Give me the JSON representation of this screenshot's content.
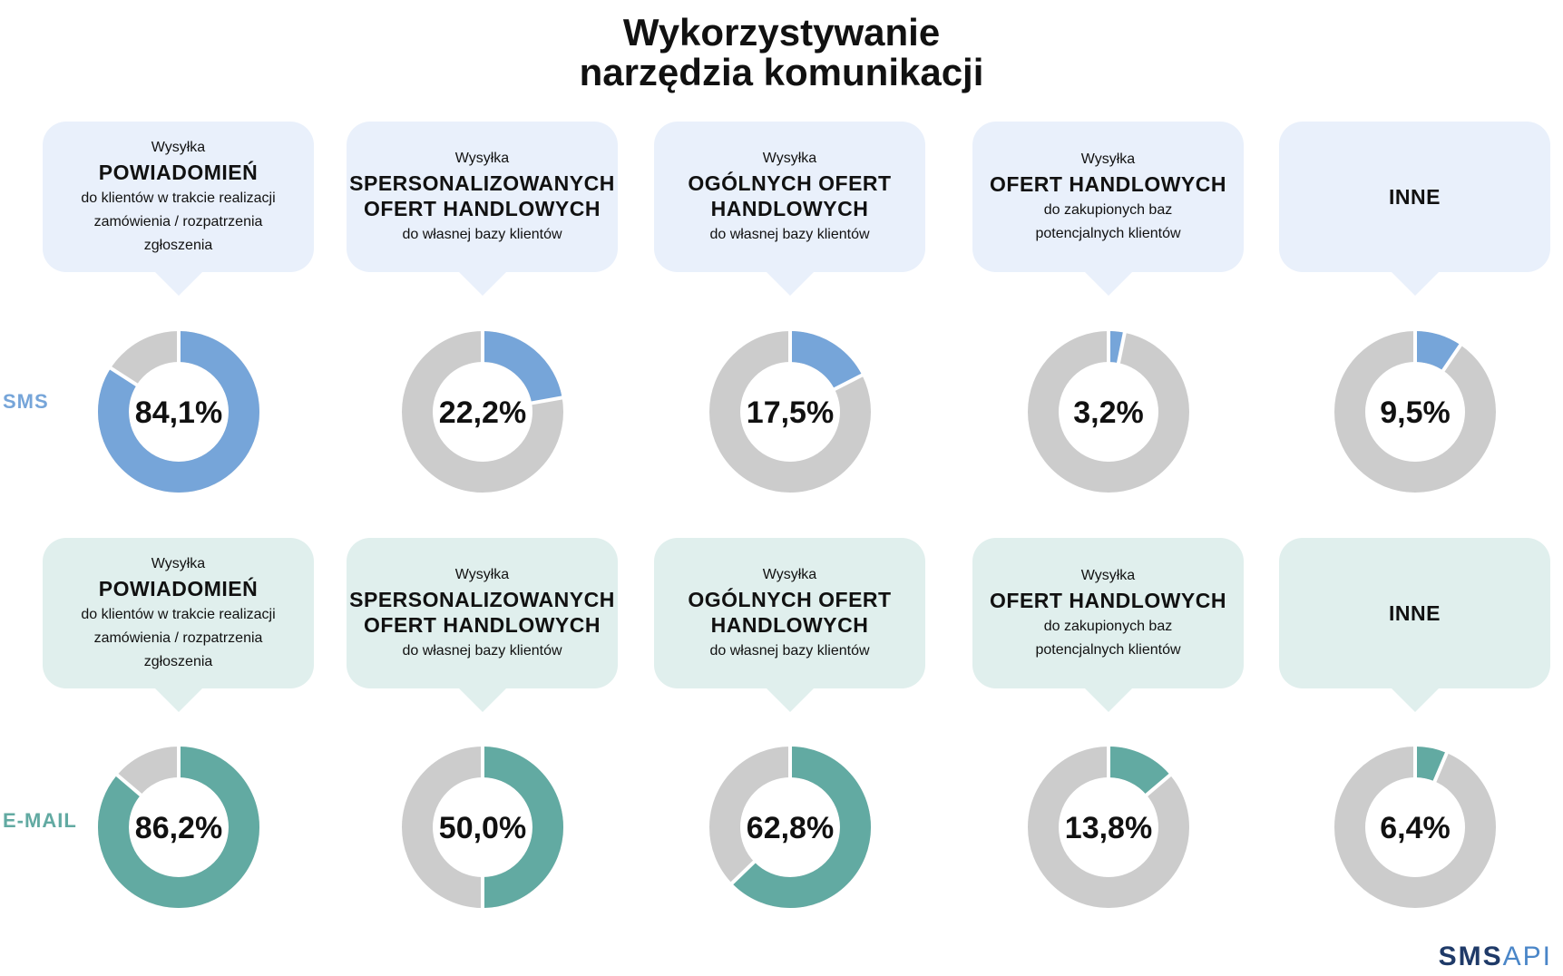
{
  "title": [
    "Wykorzystywanie",
    "narzędzia komunikacji"
  ],
  "categories": [
    {
      "pre": "Wysyłka",
      "bold": [
        "POWIADOMIEŃ"
      ],
      "post": [
        "do klientów w trakcie realizacji",
        "zamówienia / rozpatrzenia",
        "zgłoszenia"
      ]
    },
    {
      "pre": "Wysyłka",
      "bold": [
        "SPERSONALIZOWANYCH",
        "OFERT HANDLOWYCH"
      ],
      "post": [
        "do własnej bazy klientów"
      ]
    },
    {
      "pre": "Wysyłka",
      "bold": [
        "OGÓLNYCH OFERT",
        "HANDLOWYCH"
      ],
      "post": [
        "do własnej bazy klientów"
      ]
    },
    {
      "pre": "Wysyłka",
      "bold": [
        "OFERT HANDLOWYCH"
      ],
      "post": [
        "do zakupionych baz",
        "potencjalnych klientów"
      ]
    },
    {
      "pre": "",
      "bold": [
        "INNE"
      ],
      "post": []
    }
  ],
  "chart_data": {
    "type": "pie",
    "title": "Wykorzystywanie narzędzia komunikacji",
    "categories": [
      "POWIADOMIEŃ",
      "SPERSONALIZOWANYCH OFERT HANDLOWYCH",
      "OGÓLNYCH OFERT HANDLOWYCH",
      "OFERT HANDLOWYCH do zakupionych baz",
      "INNE"
    ],
    "series": [
      {
        "name": "SMS",
        "color": "#76a5d9",
        "values": [
          84.1,
          22.2,
          17.5,
          3.2,
          9.5
        ],
        "labels": [
          "84,1%",
          "22,2%",
          "17,5%",
          "3,2%",
          "9,5%"
        ]
      },
      {
        "name": "E-MAIL",
        "color": "#62aaa2",
        "values": [
          86.2,
          50.0,
          62.8,
          13.8,
          6.4
        ],
        "labels": [
          "86,2%",
          "50,0%",
          "62,8%",
          "13,8%",
          "6,4%"
        ]
      }
    ],
    "remainder_color": "#cccccc"
  },
  "logo": {
    "part1": "SMS",
    "part2": "API",
    "color1": "#1f3a68",
    "color2": "#4a86c8"
  }
}
